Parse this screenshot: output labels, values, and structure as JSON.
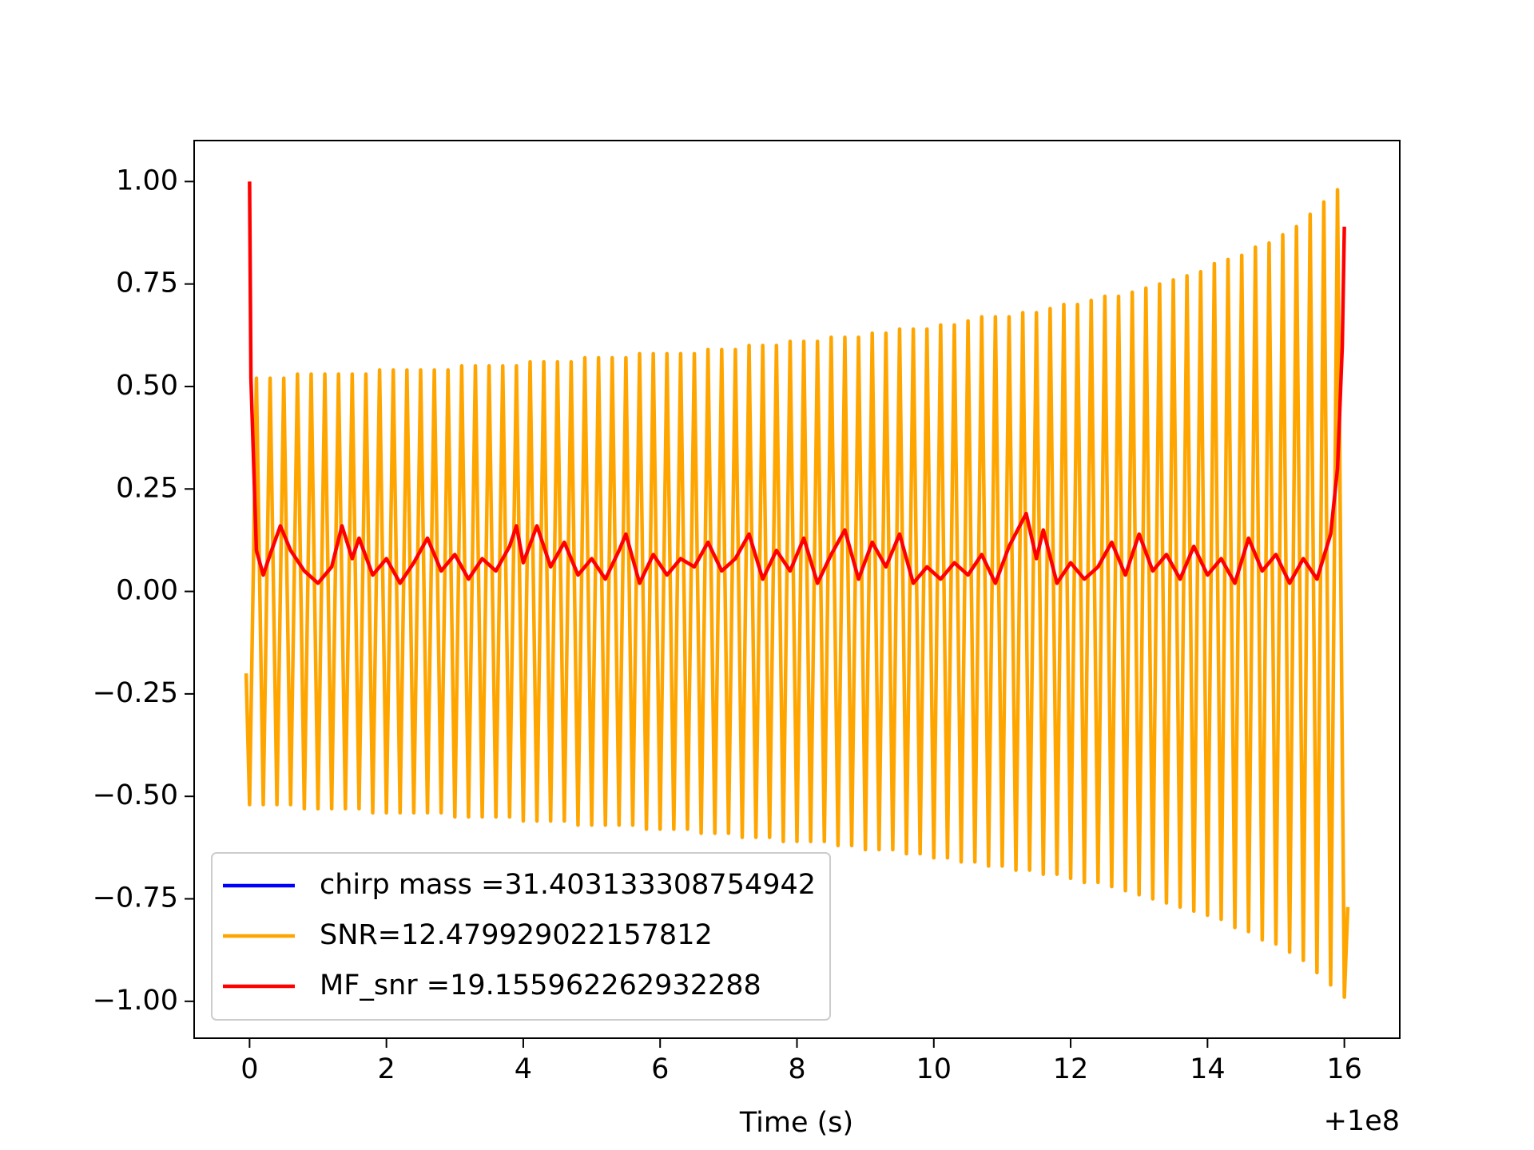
{
  "chart_data": {
    "type": "line",
    "xlabel": "Time (s)",
    "x_offset_label": "+1e8",
    "xlim": [
      -0.81,
      16.81
    ],
    "ylim": [
      -1.09,
      1.1
    ],
    "xticks": [
      0,
      2,
      4,
      6,
      8,
      10,
      12,
      14,
      16
    ],
    "yticks": [
      {
        "value": -1,
        "label": "−1.00"
      },
      {
        "value": -0.75,
        "label": "−0.75"
      },
      {
        "value": -0.5,
        "label": "−0.50"
      },
      {
        "value": -0.25,
        "label": "−0.25"
      },
      {
        "value": 0,
        "label": "0.00"
      },
      {
        "value": 0.25,
        "label": "0.25"
      },
      {
        "value": 0.5,
        "label": "0.50"
      },
      {
        "value": 0.75,
        "label": "0.75"
      },
      {
        "value": 1,
        "label": "1.00"
      }
    ],
    "legend": "lower left",
    "series": [
      {
        "name": "chirp mass =31.403133308754942",
        "color": "#0000ff",
        "x": [],
        "values": []
      },
      {
        "name": "SNR=12.479929022157812",
        "color": "#ffa500",
        "x": [
          -0.05,
          0,
          0.1,
          0.2,
          0.3,
          0.4,
          0.5,
          0.6,
          0.7,
          0.8,
          0.9,
          1,
          1.1,
          1.2,
          1.3,
          1.4,
          1.5,
          1.6,
          1.7,
          1.8,
          1.9,
          2,
          2.1,
          2.2,
          2.3,
          2.4,
          2.5,
          2.6,
          2.7,
          2.8,
          2.9,
          3,
          3.1,
          3.2,
          3.3,
          3.4,
          3.5,
          3.6,
          3.7,
          3.8,
          3.9,
          4,
          4.1,
          4.2,
          4.3,
          4.4,
          4.5,
          4.6,
          4.7,
          4.8,
          4.9,
          5,
          5.1,
          5.2,
          5.3,
          5.4,
          5.5,
          5.6,
          5.7,
          5.8,
          5.9,
          6,
          6.1,
          6.2,
          6.3,
          6.4,
          6.5,
          6.6,
          6.7,
          6.8,
          6.9,
          7,
          7.1,
          7.2,
          7.3,
          7.4,
          7.5,
          7.6,
          7.7,
          7.8,
          7.9,
          8,
          8.1,
          8.2,
          8.3,
          8.4,
          8.5,
          8.6,
          8.7,
          8.8,
          8.9,
          9,
          9.1,
          9.2,
          9.3,
          9.4,
          9.5,
          9.6,
          9.7,
          9.8,
          9.9,
          10,
          10.1,
          10.2,
          10.3,
          10.4,
          10.5,
          10.6,
          10.7,
          10.8,
          10.9,
          11,
          11.1,
          11.2,
          11.3,
          11.4,
          11.5,
          11.6,
          11.7,
          11.8,
          11.9,
          12,
          12.1,
          12.2,
          12.3,
          12.4,
          12.5,
          12.6,
          12.7,
          12.8,
          12.9,
          13,
          13.1,
          13.2,
          13.3,
          13.4,
          13.5,
          13.6,
          13.7,
          13.8,
          13.9,
          14,
          14.1,
          14.2,
          14.3,
          14.4,
          14.5,
          14.6,
          14.7,
          14.8,
          14.9,
          15,
          15.1,
          15.2,
          15.3,
          15.4,
          15.5,
          15.6,
          15.7,
          15.8,
          15.9,
          16,
          16.05
        ],
        "values": [
          -0.2,
          -0.52,
          0.52,
          -0.52,
          0.52,
          -0.52,
          0.52,
          -0.52,
          0.53,
          -0.53,
          0.53,
          -0.53,
          0.53,
          -0.53,
          0.53,
          -0.53,
          0.53,
          -0.53,
          0.53,
          -0.54,
          0.54,
          -0.54,
          0.54,
          -0.54,
          0.54,
          -0.54,
          0.54,
          -0.54,
          0.54,
          -0.54,
          0.54,
          -0.55,
          0.55,
          -0.55,
          0.55,
          -0.55,
          0.55,
          -0.55,
          0.55,
          -0.55,
          0.55,
          -0.56,
          0.56,
          -0.56,
          0.56,
          -0.56,
          0.56,
          -0.56,
          0.56,
          -0.57,
          0.57,
          -0.57,
          0.57,
          -0.57,
          0.57,
          -0.57,
          0.57,
          -0.57,
          0.58,
          -0.58,
          0.58,
          -0.58,
          0.58,
          -0.58,
          0.58,
          -0.58,
          0.58,
          -0.59,
          0.59,
          -0.59,
          0.59,
          -0.59,
          0.59,
          -0.6,
          0.6,
          -0.6,
          0.6,
          -0.6,
          0.6,
          -0.61,
          0.61,
          -0.61,
          0.61,
          -0.61,
          0.61,
          -0.61,
          0.62,
          -0.62,
          0.62,
          -0.62,
          0.62,
          -0.63,
          0.63,
          -0.63,
          0.63,
          -0.63,
          0.64,
          -0.64,
          0.64,
          -0.64,
          0.64,
          -0.65,
          0.65,
          -0.65,
          0.65,
          -0.66,
          0.66,
          -0.66,
          0.67,
          -0.67,
          0.67,
          -0.67,
          0.67,
          -0.68,
          0.68,
          -0.68,
          0.68,
          -0.69,
          0.69,
          -0.69,
          0.7,
          -0.7,
          0.7,
          -0.71,
          0.71,
          -0.71,
          0.72,
          -0.72,
          0.72,
          -0.73,
          0.73,
          -0.74,
          0.74,
          -0.75,
          0.75,
          -0.76,
          0.76,
          -0.77,
          0.77,
          -0.78,
          0.78,
          -0.79,
          0.8,
          -0.8,
          0.81,
          -0.82,
          0.82,
          -0.83,
          0.84,
          -0.85,
          0.85,
          -0.86,
          0.87,
          -0.88,
          0.89,
          -0.9,
          0.92,
          -0.93,
          0.95,
          -0.96,
          0.98,
          -0.99,
          -0.77
        ]
      },
      {
        "name": "MF_snr =19.155962262932288",
        "color": "#ff0000",
        "x": [
          0,
          0.02,
          0.1,
          0.2,
          0.3,
          0.45,
          0.6,
          0.8,
          1,
          1.2,
          1.35,
          1.5,
          1.6,
          1.8,
          2,
          2.2,
          2.4,
          2.6,
          2.8,
          3,
          3.2,
          3.4,
          3.6,
          3.8,
          3.9,
          4,
          4.2,
          4.4,
          4.6,
          4.8,
          5,
          5.2,
          5.4,
          5.5,
          5.7,
          5.9,
          6.1,
          6.3,
          6.5,
          6.7,
          6.9,
          7.1,
          7.3,
          7.5,
          7.7,
          7.9,
          8.1,
          8.3,
          8.5,
          8.7,
          8.9,
          9.1,
          9.3,
          9.5,
          9.7,
          9.9,
          10.1,
          10.3,
          10.5,
          10.7,
          10.9,
          11.1,
          11.35,
          11.5,
          11.6,
          11.8,
          12,
          12.2,
          12.4,
          12.6,
          12.8,
          13,
          13.2,
          13.4,
          13.6,
          13.8,
          14,
          14.2,
          14.4,
          14.6,
          14.8,
          15,
          15.2,
          15.4,
          15.6,
          15.8,
          15.9,
          15.97,
          16
        ],
        "values": [
          1.0,
          0.52,
          0.1,
          0.04,
          0.09,
          0.16,
          0.1,
          0.05,
          0.02,
          0.06,
          0.16,
          0.08,
          0.13,
          0.04,
          0.08,
          0.02,
          0.07,
          0.13,
          0.05,
          0.09,
          0.03,
          0.08,
          0.05,
          0.11,
          0.16,
          0.07,
          0.16,
          0.06,
          0.12,
          0.04,
          0.08,
          0.03,
          0.1,
          0.14,
          0.02,
          0.09,
          0.04,
          0.08,
          0.06,
          0.12,
          0.05,
          0.08,
          0.14,
          0.03,
          0.1,
          0.05,
          0.13,
          0.02,
          0.09,
          0.15,
          0.03,
          0.12,
          0.06,
          0.14,
          0.02,
          0.06,
          0.03,
          0.07,
          0.04,
          0.09,
          0.02,
          0.11,
          0.19,
          0.08,
          0.15,
          0.02,
          0.07,
          0.03,
          0.06,
          0.12,
          0.04,
          0.14,
          0.05,
          0.09,
          0.03,
          0.11,
          0.04,
          0.08,
          0.02,
          0.13,
          0.05,
          0.09,
          0.02,
          0.08,
          0.03,
          0.14,
          0.3,
          0.6,
          0.89
        ]
      }
    ]
  }
}
